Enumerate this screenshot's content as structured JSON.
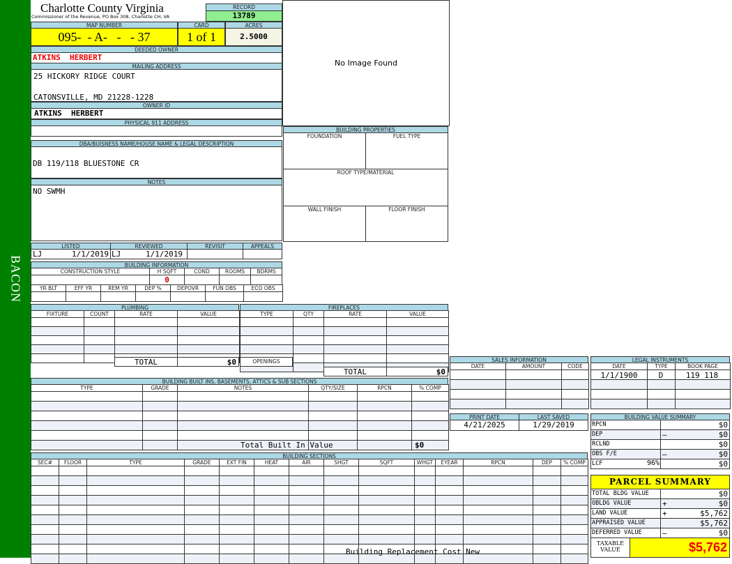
{
  "sidebar": {
    "label": "BACON"
  },
  "header": {
    "title": "Charlotte County Virginia",
    "subtitle": "Commissioner of the Revenue, PO Box 308, Charlotte CH, VA",
    "record_label": "RECORD",
    "record": "13789"
  },
  "parcel": {
    "map_label": "MAP NUMBER",
    "map": "095-  - A-   -   - 37",
    "card_label": "CARD",
    "card": "1 of 1",
    "acres_label": "ACRES",
    "acres": "2.5000"
  },
  "owner": {
    "deeded_label": "DEEDED OWNER",
    "deeded": "ATKINS  HERBERT",
    "mailing_label": "MAILING ADDRESS",
    "address1": "25 HICKORY RIDGE COURT",
    "address2": "CATONSVILLE, MD 21228-1228",
    "owner_id_label": "OWNER ID",
    "owner_id": "ATKINS  HERBERT",
    "physical_label": "PHYSICAL 911 ADDRESS",
    "physical": ""
  },
  "image": {
    "text": "No Image Found"
  },
  "dba": {
    "label": "DBA/BUISNESS NAME/HOUSE NAME & LEGAL DESCRIPTION",
    "value": "DB 119/118 BLUESTONE CR"
  },
  "notes": {
    "label": "NOTES",
    "value": "NO SWMH"
  },
  "props": {
    "label": "BUILDING PROPERTIES",
    "foundation": "FOUNDATION",
    "fuel": "FUEL TYPE",
    "roof": "ROOF TYPE/MATERIAL",
    "wall": "WALL FINISH",
    "floor": "FLOOR FINISH"
  },
  "review": {
    "listed_label": "LISTED",
    "listed_by": "LJ",
    "listed": "1/1/2019",
    "reviewed_label": "REVIEWED",
    "reviewed_by": "LJ",
    "reviewed": "1/1/2019",
    "revisit_label": "REVISIT",
    "appeals_label": "APPEALS"
  },
  "building": {
    "label": "BUILDING INFORMATION",
    "style": "CONSTRUCTION STYLE",
    "hsqft": "H SQFT",
    "hsqft_value": "0",
    "cond": "COND",
    "rooms": "ROOMS",
    "bdrms": "BDRMS",
    "yrblt": "YR BLT",
    "effyr": "EFF YR",
    "remyr": "REM YR",
    "dep": "DEP %",
    "depovr": "DEPOVR",
    "funobs": "FUN OBS",
    "ecoobs": "ECO OBS"
  },
  "plumbing": {
    "label": "PLUMBING",
    "cols": [
      "FIXTURE",
      "COUNT",
      "RATE",
      "VALUE"
    ],
    "total_label": "TOTAL",
    "total": "$0"
  },
  "fireplaces": {
    "label": "FIREPLACES",
    "cols": [
      "TYPE",
      "QTY",
      "RATE",
      "VALUE"
    ],
    "openings": "OPENINGS",
    "total_label": "TOTAL",
    "total": "$0"
  },
  "builtins": {
    "label": "BUILDING BUILT INS, BASEMENTS, ATTICS & SUB SECTIONS",
    "cols": [
      "TYPE",
      "GRADE",
      "NOTES",
      "QTY/SIZE",
      "RPCN",
      "% COMP"
    ],
    "total_label": "Total Built In Value",
    "total": "$0"
  },
  "sections": {
    "label": "BUILDING SECTIONS",
    "cols": [
      "SEC#",
      "FLOOR",
      "TYPE",
      "GRADE",
      "EXT FIN",
      "HEAT",
      "AIR",
      "SHGT",
      "SQFT",
      "WHGT",
      "EYEAR",
      "RPCN",
      "DEP",
      "% COMP"
    ],
    "footer": "Building Replacement Cost New"
  },
  "sales": {
    "label": "SALES INFORMATION",
    "cols": [
      "DATE",
      "AMOUNT",
      "CODE"
    ]
  },
  "legal": {
    "label": "LEGAL INSTRUMENTS",
    "cols": [
      "DATE",
      "TYPE",
      "BOOK PAGE"
    ],
    "row": {
      "date": "1/1/1900",
      "type": "D",
      "bookpage": "119 118"
    }
  },
  "dates": {
    "print_label": "PRINT DATE",
    "print": "4/21/2025",
    "saved_label": "LAST SAVED",
    "saved": "1/29/2019"
  },
  "bvs": {
    "label": "BUILDING VALUE SUMMARY",
    "rows": [
      {
        "label": "RPCN",
        "sign": "",
        "value": "$0"
      },
      {
        "label": "DEP",
        "sign": "–",
        "value": "$0"
      },
      {
        "label": "RCLND",
        "sign": "",
        "value": "$0"
      },
      {
        "label": "OBS F/E",
        "sign": "–",
        "value": "$0"
      },
      {
        "label": "LCF",
        "pct": "96%",
        "sign": "",
        "value": "$0"
      }
    ]
  },
  "summary": {
    "label": "PARCEL SUMMARY",
    "rows": [
      {
        "label": "TOTAL BLDG VALUE",
        "sign": "",
        "value": "$0"
      },
      {
        "label": "OBLDG VALUE",
        "sign": "+",
        "value": "$0"
      },
      {
        "label": "LAND VALUE",
        "sign": "+",
        "value": "$5,762"
      },
      {
        "label": "APPRAISED VALUE",
        "sign": "",
        "value": "$5,762"
      },
      {
        "label": "DEFERRED VALUE",
        "sign": "–",
        "value": "$0"
      }
    ],
    "taxable_label": "TAXABLE VALUE",
    "taxable": "$5,762"
  },
  "colors": {
    "sidebar": "#008000",
    "header": "#add8e6",
    "highlight": "#ffff00",
    "record": "#90ee90",
    "alert": "#ff0000"
  }
}
